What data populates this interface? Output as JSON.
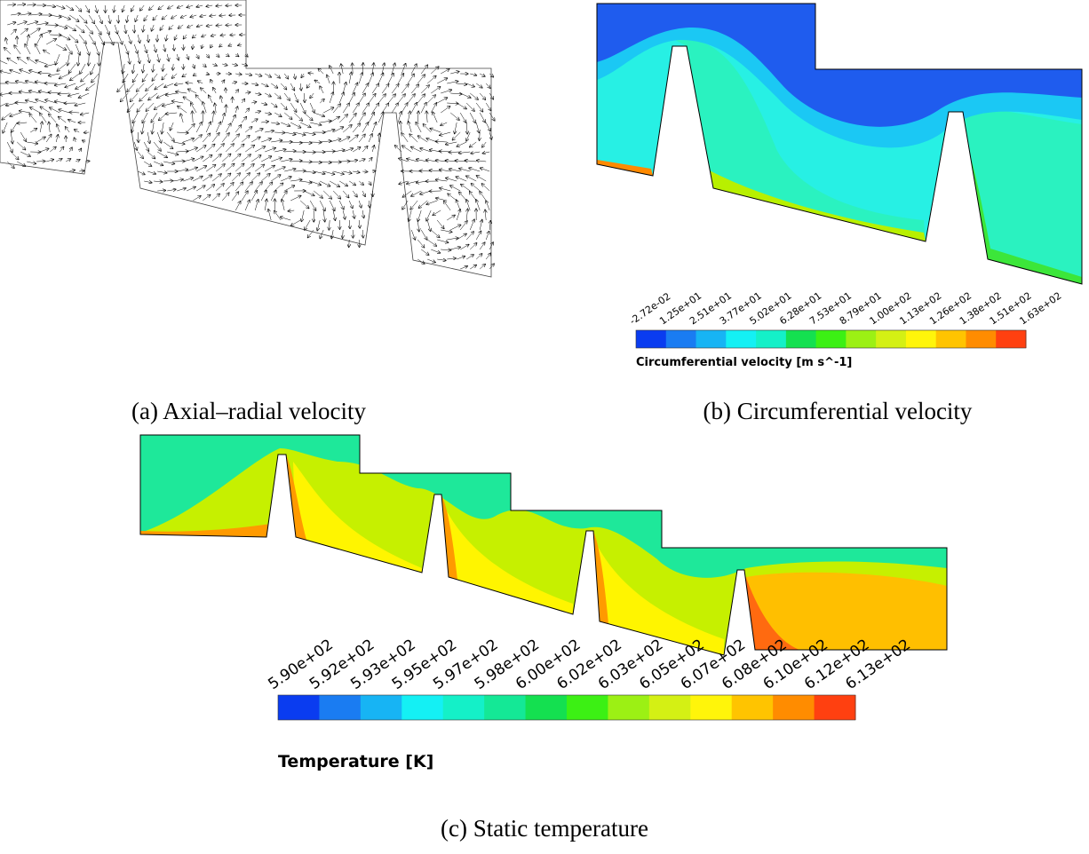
{
  "panels": [
    {
      "caption": "(a) Axial–radial velocity"
    },
    {
      "caption": "(b) Circumferential velocity",
      "colorbar": {
        "title": "Circumferential velocity [m s^-1]",
        "labels": [
          "-2.72e-02",
          "1.25e+01",
          "2.51e+01",
          "3.77e+01",
          "5.02e+01",
          "6.28e+01",
          "7.53e+01",
          "8.79e+01",
          "1.00e+02",
          "1.13e+02",
          "1.26e+02",
          "1.38e+02",
          "1.51e+02",
          "1.63e+02"
        ]
      }
    },
    {
      "caption": "(c) Static temperature",
      "colorbar": {
        "title": "Temperature [K]",
        "labels": [
          "5.90e+02",
          "5.92e+02",
          "5.93e+02",
          "5.95e+02",
          "5.97e+02",
          "5.98e+02",
          "6.00e+02",
          "6.02e+02",
          "6.03e+02",
          "6.05e+02",
          "6.07e+02",
          "6.08e+02",
          "6.10e+02",
          "6.12e+02",
          "6.13e+02"
        ]
      }
    }
  ]
}
